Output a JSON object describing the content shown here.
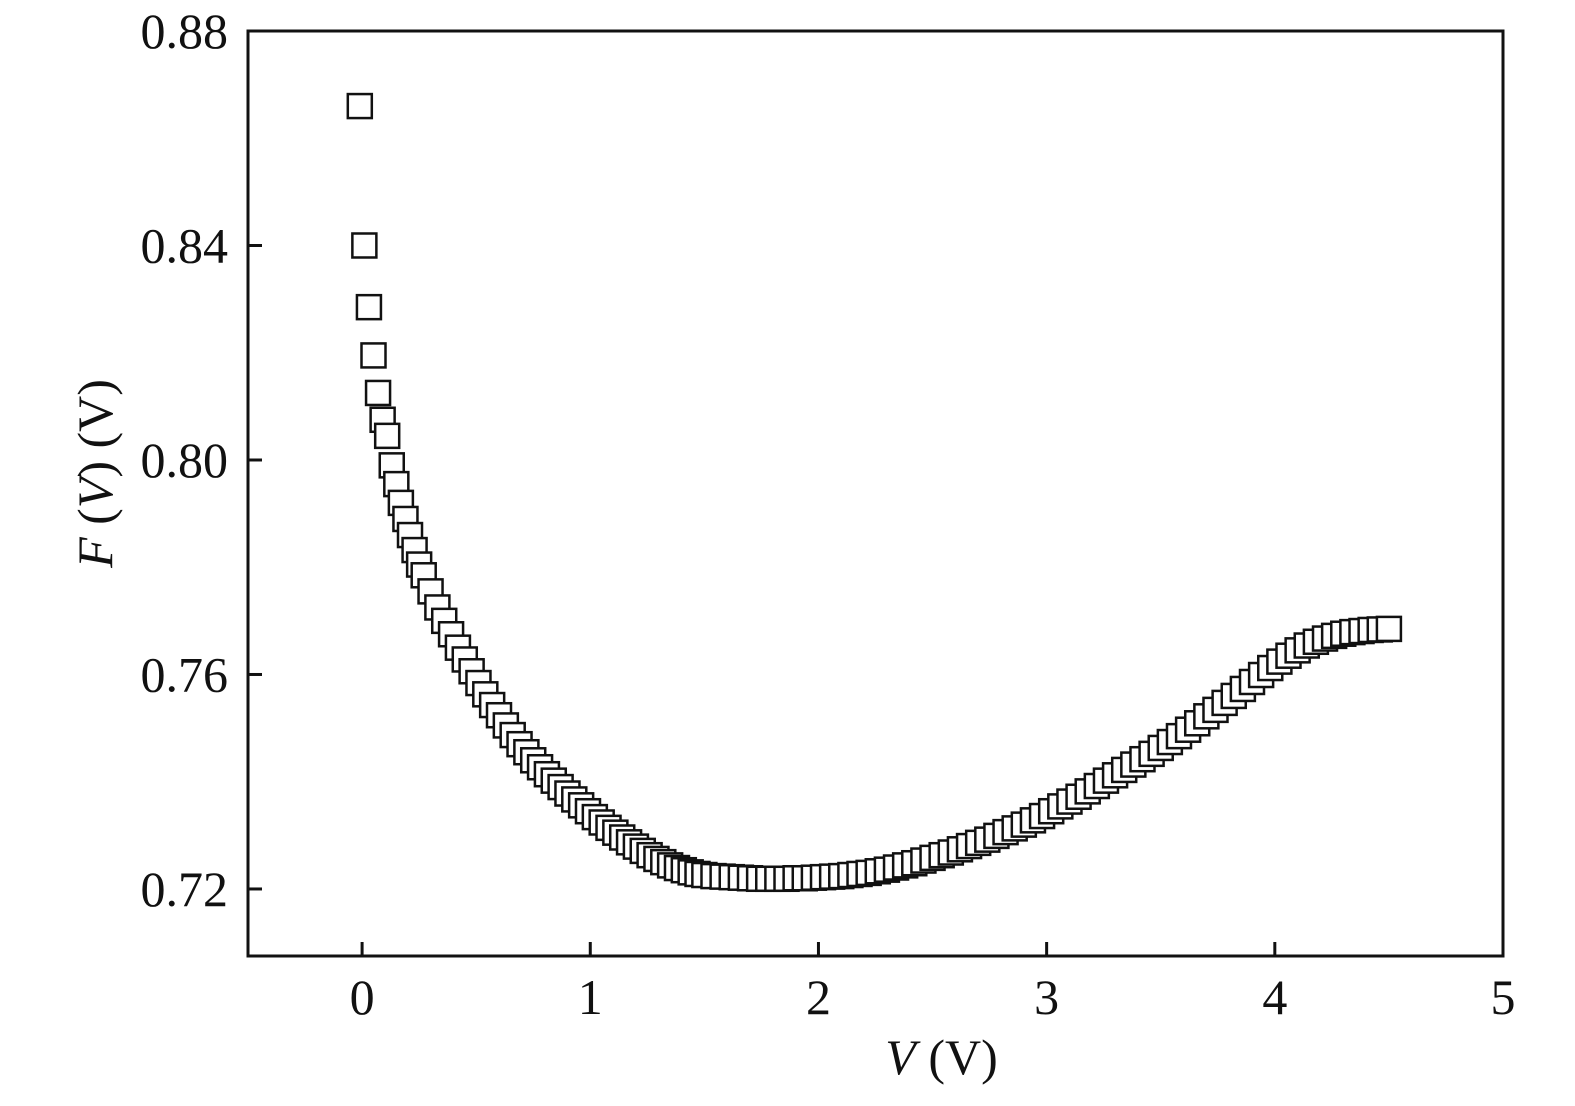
{
  "chart_data": {
    "type": "scatter",
    "xlabel": {
      "var": "V",
      "unit": " (V)"
    },
    "ylabel": {
      "var1": "F",
      "open": " (",
      "var2": "V",
      "close": ") (V)"
    },
    "xlim": [
      -0.5,
      5
    ],
    "ylim": [
      0.7075,
      0.88
    ],
    "x_ticks": [
      0,
      1,
      2,
      3,
      4,
      5
    ],
    "x_tick_labels": [
      "0",
      "1",
      "2",
      "3",
      "4",
      "5"
    ],
    "y_ticks": [
      0.72,
      0.76,
      0.8,
      0.84,
      0.88
    ],
    "y_tick_labels": [
      "0.72",
      "0.76",
      "0.80",
      "0.84",
      "0.88"
    ],
    "grid": false,
    "legend": "none",
    "marker": "open-square",
    "series": [
      {
        "x": [
          -0.01,
          0.01,
          0.03,
          0.05,
          0.07,
          0.09,
          0.11,
          0.13,
          0.15,
          0.17,
          0.19,
          0.21,
          0.23,
          0.25,
          0.27,
          0.3,
          0.33,
          0.36,
          0.39,
          0.42,
          0.45,
          0.48,
          0.51,
          0.54,
          0.57,
          0.6,
          0.63,
          0.66,
          0.69,
          0.72,
          0.75,
          0.78,
          0.81,
          0.84,
          0.87,
          0.9,
          0.93,
          0.96,
          0.99,
          1.02,
          1.05,
          1.08,
          1.11,
          1.14,
          1.17,
          1.2,
          1.23,
          1.26,
          1.29,
          1.32,
          1.35,
          1.38,
          1.41,
          1.44,
          1.47,
          1.5,
          1.54,
          1.58,
          1.62,
          1.66,
          1.7,
          1.74,
          1.78,
          1.82,
          1.86,
          1.9,
          1.94,
          1.98,
          2.02,
          2.06,
          2.1,
          2.14,
          2.18,
          2.22,
          2.26,
          2.3,
          2.34,
          2.38,
          2.42,
          2.46,
          2.5,
          2.54,
          2.58,
          2.62,
          2.66,
          2.7,
          2.74,
          2.78,
          2.82,
          2.86,
          2.9,
          2.94,
          2.98,
          3.02,
          3.06,
          3.1,
          3.14,
          3.18,
          3.22,
          3.26,
          3.3,
          3.34,
          3.38,
          3.42,
          3.46,
          3.5,
          3.54,
          3.58,
          3.62,
          3.66,
          3.7,
          3.74,
          3.78,
          3.82,
          3.86,
          3.9,
          3.94,
          3.98,
          4.02,
          4.06,
          4.1,
          4.14,
          4.18,
          4.22,
          4.26,
          4.3,
          4.34,
          4.38,
          4.42,
          4.46,
          4.5
        ],
        "y": [
          0.866,
          0.84,
          0.8285,
          0.8195,
          0.8125,
          0.8075,
          0.8045,
          0.799,
          0.7955,
          0.792,
          0.789,
          0.786,
          0.7832,
          0.7805,
          0.7785,
          0.7755,
          0.7725,
          0.77,
          0.7675,
          0.765,
          0.7628,
          0.7606,
          0.7584,
          0.7563,
          0.7543,
          0.7524,
          0.7505,
          0.7487,
          0.747,
          0.7455,
          0.744,
          0.7427,
          0.7414,
          0.7402,
          0.739,
          0.7378,
          0.7367,
          0.7356,
          0.7345,
          0.7334,
          0.7324,
          0.7314,
          0.7305,
          0.7296,
          0.7287,
          0.7279,
          0.7271,
          0.7263,
          0.7256,
          0.725,
          0.7244,
          0.7239,
          0.7235,
          0.7231,
          0.7228,
          0.7226,
          0.7224,
          0.7223,
          0.7222,
          0.7221,
          0.722,
          0.7219,
          0.7219,
          0.7219,
          0.7219,
          0.722,
          0.722,
          0.7221,
          0.7222,
          0.7223,
          0.7224,
          0.7226,
          0.7228,
          0.723,
          0.7233,
          0.7236,
          0.724,
          0.7244,
          0.7248,
          0.7253,
          0.7258,
          0.7263,
          0.7268,
          0.7274,
          0.728,
          0.7286,
          0.7292,
          0.7299,
          0.7306,
          0.7313,
          0.732,
          0.7328,
          0.7336,
          0.7345,
          0.7354,
          0.7363,
          0.7372,
          0.7382,
          0.7392,
          0.7402,
          0.7412,
          0.7422,
          0.7432,
          0.7442,
          0.7452,
          0.7463,
          0.7474,
          0.7485,
          0.7497,
          0.7509,
          0.7522,
          0.7534,
          0.7547,
          0.756,
          0.7573,
          0.7586,
          0.7599,
          0.7612,
          0.7624,
          0.7635,
          0.7645,
          0.7654,
          0.7661,
          0.7667,
          0.7672,
          0.7676,
          0.7679,
          0.7681,
          0.7683,
          0.7684,
          0.7685
        ]
      }
    ]
  }
}
